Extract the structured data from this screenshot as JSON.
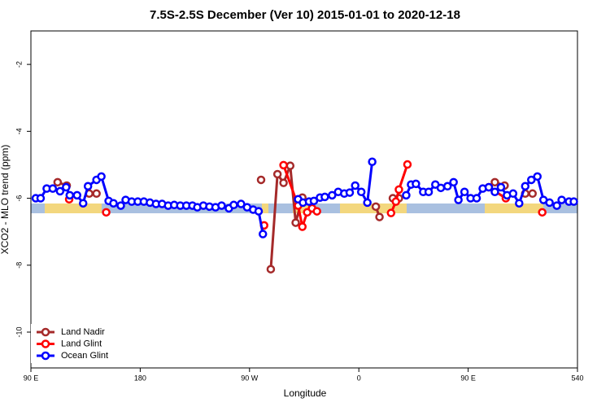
{
  "chart_data": {
    "type": "line",
    "title": "7.5S-2.5S December (Ver 10)   2015-01-01 to 2020-12-18",
    "x_label": "Longitude",
    "y_label": "XCO2 - MLO trend (ppm)",
    "xlim": [
      90,
      540
    ],
    "ylim": [
      -11.07,
      -1.0
    ],
    "xticks": [
      {
        "value": 90,
        "label": "90 E"
      },
      180,
      {
        "value": 270,
        "label": "90 W"
      },
      {
        "value": 360,
        "label": "0"
      },
      {
        "value": 450,
        "label": "90 E"
      },
      540
    ],
    "yticks": [
      -2,
      -4,
      -6,
      -8,
      -10
    ],
    "legend": "bottomleft",
    "series": [
      {
        "name": "Land Nadir",
        "color": "#a52a2a",
        "x": [
          112,
          119.5,
          null,
          138,
          144,
          null,
          279.5,
          null,
          287.5,
          293,
          298,
          303.5,
          308,
          313.5,
          null,
          374,
          377,
          null,
          388,
          393,
          null,
          472,
          480,
          null,
          497,
          503
        ],
        "values": [
          -5.52,
          -5.62,
          null,
          -5.86,
          -5.86,
          null,
          -5.45,
          null,
          -8.12,
          -5.28,
          -5.54,
          -5.03,
          -6.73,
          -5.98,
          null,
          -6.25,
          -6.56,
          null,
          -6.0,
          -6.0,
          null,
          -5.52,
          -5.62,
          null,
          -5.86,
          -5.86
        ]
      },
      {
        "name": "Land Glint",
        "color": "#ff0000",
        "x": [
          121.5,
          null,
          152,
          null,
          282,
          null,
          298,
          310,
          313.5,
          317.5,
          321.5,
          325.5,
          null,
          386.5,
          390.5,
          393,
          400,
          null,
          467,
          481,
          null,
          511
        ],
        "values": [
          -6.03,
          null,
          -6.42,
          null,
          -6.81,
          null,
          -5.01,
          -6.22,
          -6.85,
          -6.42,
          -6.3,
          -6.39,
          null,
          -6.44,
          -6.1,
          -5.74,
          -4.99,
          null,
          -5.67,
          -6.0,
          null,
          -6.42
        ]
      },
      {
        "name": "Ocean Glint",
        "color": "#0000ff",
        "x": [
          94,
          98,
          103,
          108,
          114,
          119,
          122,
          128,
          133,
          137,
          144,
          148,
          154,
          158,
          164,
          168,
          173,
          178,
          183,
          188,
          193,
          198,
          203,
          208,
          213,
          218,
          223,
          227,
          232,
          237,
          242,
          247,
          253,
          257,
          263,
          268,
          273,
          277.5,
          281,
          null,
          310,
          314,
          319,
          323,
          328,
          332,
          338,
          343,
          348,
          352.5,
          357,
          362,
          367,
          371,
          null,
          399,
          403,
          407,
          413,
          417.5,
          423,
          427.5,
          433,
          438,
          442,
          447,
          452,
          457,
          462,
          467,
          472,
          477,
          482,
          487,
          492,
          497,
          502,
          507,
          512,
          517,
          523,
          527,
          533,
          537
        ],
        "values": [
          -6.0,
          -6.0,
          -5.71,
          -5.71,
          -5.79,
          -5.67,
          -5.91,
          -5.91,
          -6.15,
          -5.64,
          -5.45,
          -5.35,
          -6.08,
          -6.15,
          -6.22,
          -6.05,
          -6.1,
          -6.1,
          -6.1,
          -6.13,
          -6.17,
          -6.17,
          -6.22,
          -6.2,
          -6.22,
          -6.22,
          -6.22,
          -6.27,
          -6.22,
          -6.25,
          -6.27,
          -6.22,
          -6.3,
          -6.2,
          -6.17,
          -6.27,
          -6.34,
          -6.39,
          -7.07,
          null,
          -6.03,
          -6.13,
          -6.1,
          -6.08,
          -5.98,
          -5.96,
          -5.91,
          -5.81,
          -5.86,
          -5.83,
          -5.62,
          -5.81,
          -6.13,
          -4.91,
          null,
          -5.91,
          -5.59,
          -5.57,
          -5.81,
          -5.81,
          -5.59,
          -5.69,
          -5.64,
          -5.52,
          -6.05,
          -5.81,
          -6.0,
          -6.0,
          -5.71,
          -5.67,
          -5.81,
          -5.67,
          -5.91,
          -5.86,
          -6.15,
          -5.64,
          -5.45,
          -5.35,
          -6.05,
          -6.13,
          -6.22,
          -6.05,
          -6.1,
          -6.1
        ]
      }
    ]
  }
}
